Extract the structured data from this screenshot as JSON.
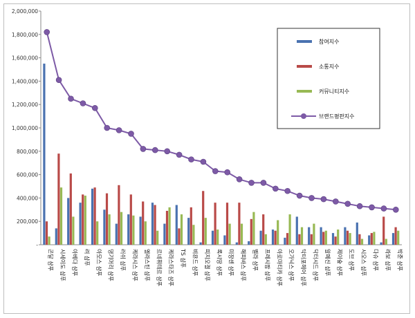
{
  "chart_data": {
    "type": "bar",
    "title": "",
    "xlabel": "",
    "ylabel": "",
    "ylim": [
      0,
      2000000
    ],
    "yticks": [
      "-",
      "200,000",
      "400,000",
      "600,000",
      "800,000",
      "1,000,000",
      "1,200,000",
      "1,400,000",
      "1,600,000",
      "1,800,000",
      "2,000,000"
    ],
    "grid": false,
    "legend_position": "top-right",
    "categories": [
      "곤달 샴푸",
      "시세이도 샴푸",
      "아베다 샴푸",
      "려 샴푸",
      "아모스 샴푸",
      "댕기머리 샴푸",
      "러쉬 샴푸",
      "케라시스 샴푸",
      "엘라스틴 샴푸",
      "르네휘테르 샴푸",
      "케라스타즈 샴푸",
      "TS 샴푸",
      "비욘드 샴푸",
      "피지오겔 샴푸",
      "록시땅 샴푸",
      "미쟝센 샴푸",
      "해피바스 샴푸",
      "벨라 샴푸",
      "프레시팝 샴푸",
      "아로마티카 샴푸",
      "오가닉스 샴푸",
      "닥터포헤어 샴푸",
      "닥터시드 샴푸",
      "알페신 샴푸",
      "제이숲 샴푸",
      "도브 샴푸",
      "시오스 샴푸",
      "다슈 샴푸",
      "라보 샴푸",
      "박준 샴푸"
    ],
    "series": [
      {
        "name": "참여지수",
        "color": "#4a72b0",
        "values": [
          1550000,
          140000,
          400000,
          360000,
          480000,
          300000,
          180000,
          260000,
          240000,
          360000,
          180000,
          340000,
          230000,
          20000,
          120000,
          80000,
          20000,
          30000,
          120000,
          130000,
          60000,
          240000,
          150000,
          150000,
          100000,
          150000,
          190000,
          80000,
          20000,
          100000
        ]
      },
      {
        "name": "소통지수",
        "color": "#b94a48",
        "values": [
          200000,
          780000,
          610000,
          430000,
          490000,
          440000,
          510000,
          430000,
          370000,
          340000,
          290000,
          140000,
          320000,
          460000,
          360000,
          360000,
          360000,
          220000,
          260000,
          120000,
          100000,
          90000,
          90000,
          110000,
          70000,
          120000,
          90000,
          100000,
          240000,
          150000
        ]
      },
      {
        "name": "커뮤니티지수",
        "color": "#98b954",
        "values": [
          70000,
          490000,
          240000,
          420000,
          200000,
          260000,
          280000,
          250000,
          200000,
          120000,
          320000,
          260000,
          170000,
          230000,
          130000,
          180000,
          180000,
          280000,
          90000,
          210000,
          260000,
          150000,
          180000,
          120000,
          130000,
          100000,
          50000,
          110000,
          50000,
          120000
        ]
      },
      {
        "name": "브랜드평판지수",
        "color": "#7d5aa6",
        "values": [
          1820000,
          1410000,
          1250000,
          1210000,
          1170000,
          1000000,
          980000,
          950000,
          820000,
          810000,
          800000,
          770000,
          730000,
          710000,
          630000,
          620000,
          560000,
          530000,
          530000,
          480000,
          460000,
          420000,
          400000,
          390000,
          370000,
          350000,
          330000,
          320000,
          310000,
          300000
        ]
      }
    ]
  }
}
